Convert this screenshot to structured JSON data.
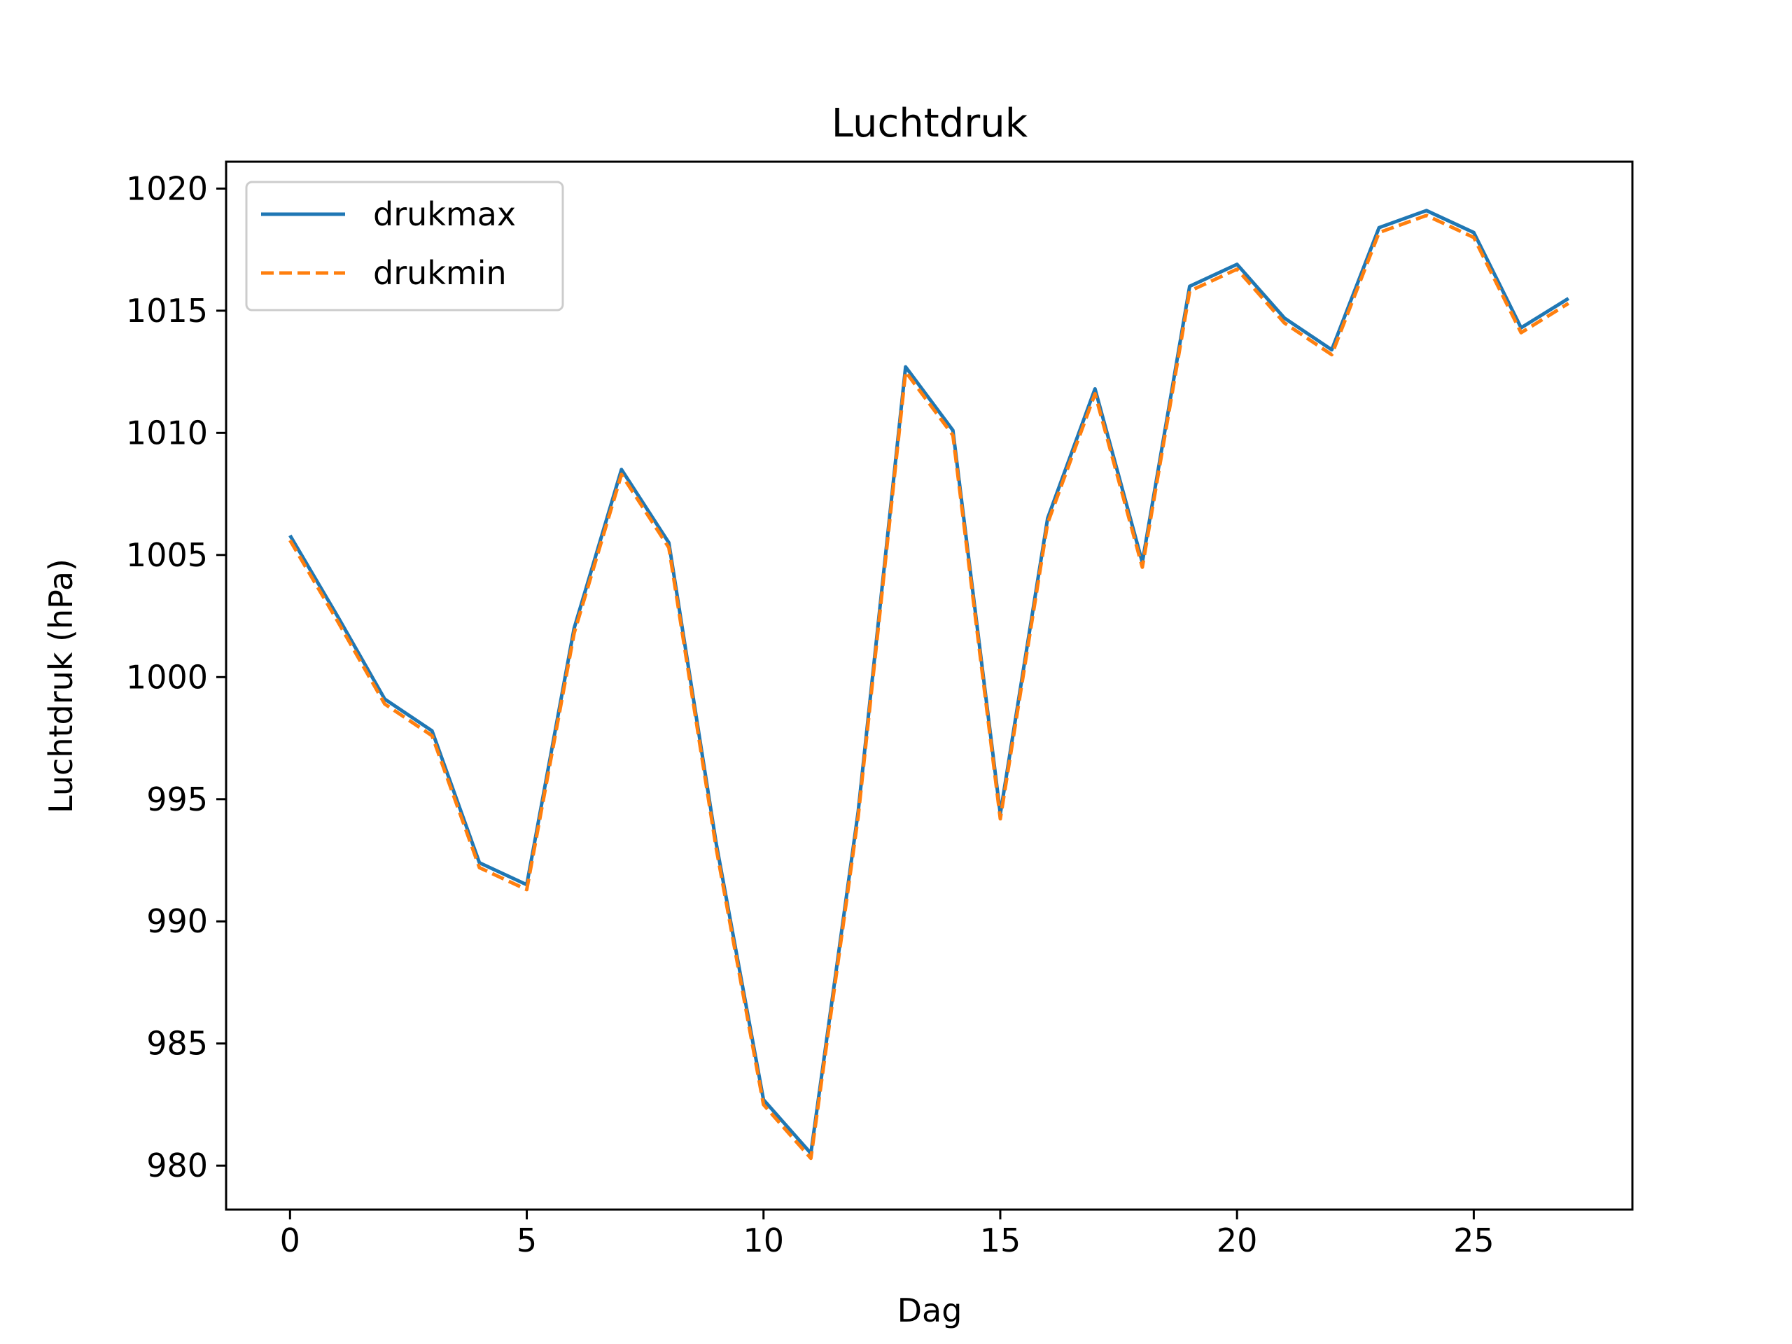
{
  "chart_data": {
    "type": "line",
    "title": "Luchtdruk",
    "xlabel": "Dag",
    "ylabel": "Luchtdruk (hPa)",
    "xlim": [
      -1.35,
      28.35
    ],
    "ylim": [
      978.2,
      1021.1
    ],
    "x_ticks": [
      0,
      5,
      10,
      15,
      20,
      25
    ],
    "y_ticks": [
      980,
      985,
      990,
      995,
      1000,
      1005,
      1010,
      1015,
      1020
    ],
    "x_tick_labels": [
      "0",
      "5",
      "10",
      "15",
      "20",
      "25"
    ],
    "y_tick_labels": [
      "980",
      "985",
      "990",
      "995",
      "1000",
      "1005",
      "1010",
      "1015",
      "1020"
    ],
    "grid": false,
    "legend_position": "top-left",
    "x": [
      0,
      1,
      2,
      3,
      4,
      5,
      6,
      7,
      8,
      9,
      10,
      11,
      12,
      13,
      14,
      15,
      16,
      17,
      18,
      19,
      20,
      21,
      22,
      23,
      24,
      25,
      26,
      27
    ],
    "series": [
      {
        "name": "drukmax",
        "color": "#1f77b4",
        "line_style": "solid",
        "values": [
          1005.8,
          1002.5,
          999.1,
          997.8,
          992.4,
          991.5,
          1002.0,
          1008.5,
          1005.5,
          993.2,
          982.7,
          980.5,
          994.5,
          1012.7,
          1010.1,
          994.4,
          1006.5,
          1011.8,
          1004.7,
          1016.0,
          1016.9,
          1014.7,
          1013.4,
          1018.4,
          1019.1,
          1018.2,
          1014.3,
          1015.5
        ]
      },
      {
        "name": "drukmin",
        "color": "#ff7f0e",
        "line_style": "dashed",
        "values": [
          1005.6,
          1002.3,
          998.9,
          997.6,
          992.2,
          991.3,
          1001.8,
          1008.3,
          1005.3,
          993.0,
          982.5,
          980.3,
          994.3,
          1012.5,
          1009.9,
          994.2,
          1006.3,
          1011.6,
          1004.5,
          1015.8,
          1016.7,
          1014.5,
          1013.2,
          1018.2,
          1018.9,
          1018.0,
          1014.1,
          1015.3
        ]
      }
    ]
  }
}
